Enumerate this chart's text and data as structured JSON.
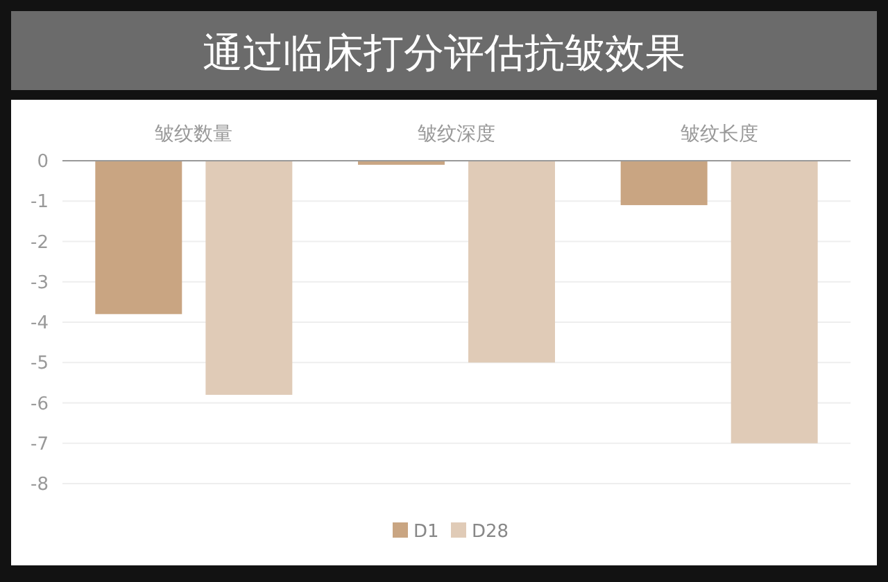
{
  "chart_data": {
    "type": "bar",
    "title": "通过临床打分评估抗皱效果",
    "categories": [
      "皱纹数量",
      "皱纹深度",
      "皱纹长度"
    ],
    "series": [
      {
        "name": "D1",
        "color": "#c9a582",
        "values": [
          -3.8,
          -0.1,
          -1.1
        ]
      },
      {
        "name": "D28",
        "color": "#e0cbb7",
        "values": [
          -5.8,
          -5.0,
          -7.0
        ]
      }
    ],
    "ylim": [
      -8,
      0
    ],
    "yticks": [
      -8,
      -7,
      -6,
      -5,
      -4,
      -3,
      -2,
      -1,
      0
    ],
    "grid": "y",
    "legend": "bottom"
  }
}
